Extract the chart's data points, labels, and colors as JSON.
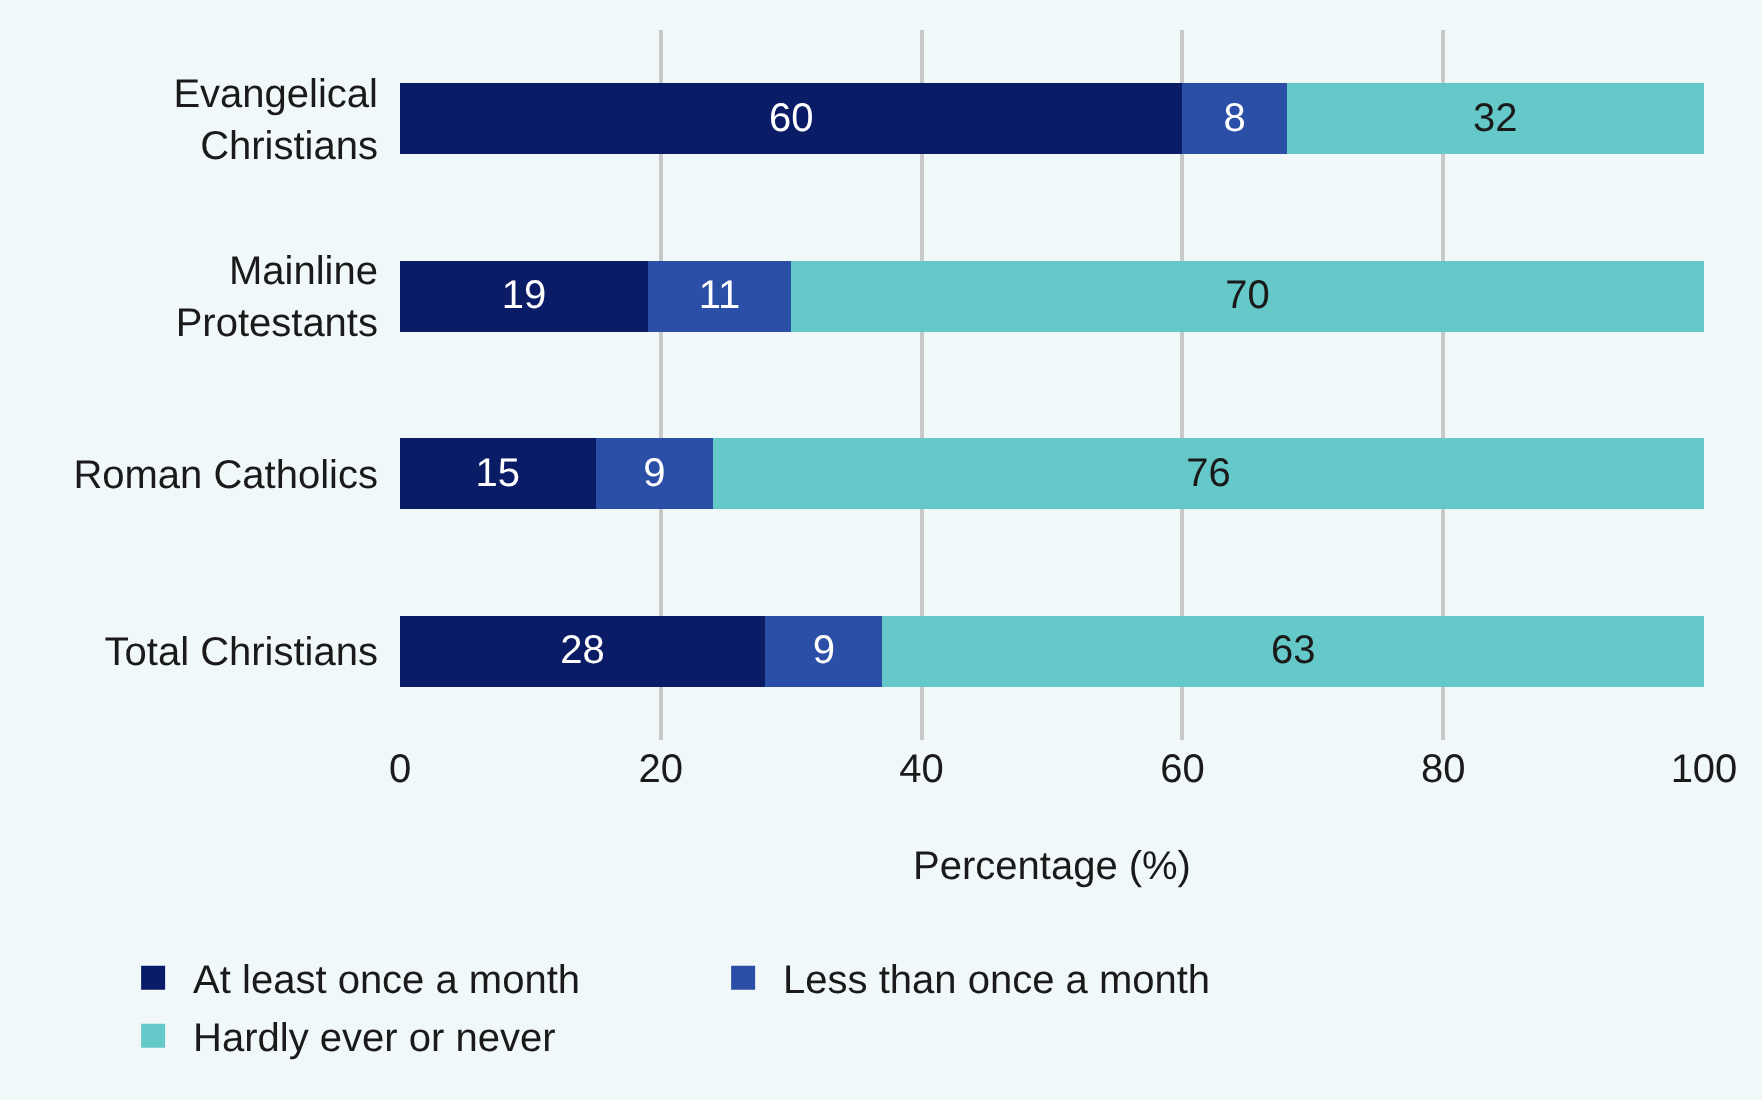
{
  "chart_data": {
    "type": "bar",
    "orientation": "horizontal",
    "stacked": true,
    "xlabel": "Percentage (%)",
    "categories": [
      "Evangelical\nChristians",
      "Mainline\nProtestants",
      "Roman Catholics",
      "Total Christians"
    ],
    "series": [
      {
        "name": "At least once a month",
        "color": "#0b1c66",
        "values": [
          60,
          19,
          15,
          28
        ]
      },
      {
        "name": "Less than once a month",
        "color": "#2b4ea6",
        "values": [
          8,
          11,
          9,
          9
        ]
      },
      {
        "name": "Hardly ever or never",
        "color": "#66c9c9",
        "values": [
          32,
          70,
          76,
          63
        ]
      }
    ],
    "xlim": [
      0,
      100
    ],
    "xticks": [
      0,
      20,
      40,
      60,
      80,
      100
    ],
    "grid": "x",
    "legend": "bottom",
    "data_labels": true
  }
}
